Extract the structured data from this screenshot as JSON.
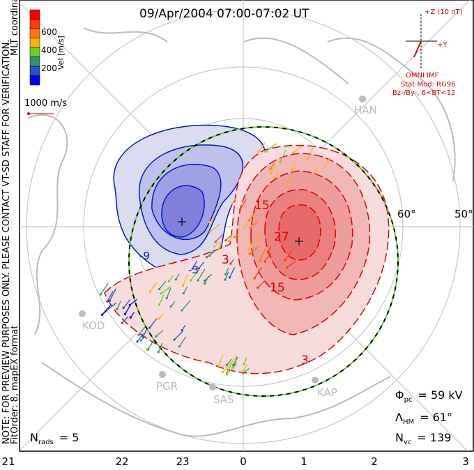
{
  "title": "09/Apr/2004 07:00-07:02 UT",
  "side_note": {
    "line1": "NOTE: FOR PREVIEW PURPOSES ONLY. PLEASE CONTACT VT-SD STAFF FOR VERIFICATION.",
    "line2": "FitOrder: 8, mapEX format"
  },
  "coords_label": "MLT coordinates",
  "colorbar": {
    "label": "Vel [m/s]",
    "ticks": [
      "200",
      "400",
      "600"
    ],
    "colors": [
      "#0000ff",
      "#2850c8",
      "#3c8c78",
      "#64d228",
      "#ffb400",
      "#ff7800",
      "#ff3c00",
      "#ff0000"
    ]
  },
  "vector_scale": "1000 m/s",
  "imf": {
    "z_label": "+Z (10 nT)",
    "y_label": "+Y",
    "source": "OMNI IMF",
    "stat_mod": "Stat Mod: RG96",
    "condition": "Bz-/By-, 6<BT<12"
  },
  "stats": {
    "phi_pc": {
      "sym": "Φ",
      "sub": "pc",
      "value": "= 59 kV"
    },
    "lambda_hm": {
      "sym": "Λ",
      "sub": "HM",
      "value": "= 61°"
    },
    "n_vc": {
      "sym": "N",
      "sub": "vc",
      "value": "= 139"
    },
    "n_rads": {
      "sym": "N",
      "sub": "rads",
      "value": "= 5"
    }
  },
  "lat_labels": [
    "60°",
    "50°"
  ],
  "mlt_ticks": [
    "21",
    "22",
    "23",
    "0",
    "1",
    "2",
    "3"
  ],
  "stations": [
    "HAN",
    "KOD",
    "PGR",
    "SAS",
    "KAP"
  ],
  "contour_labels": [
    "-9",
    "-3",
    "3",
    "15",
    "27",
    "15",
    "3"
  ]
}
